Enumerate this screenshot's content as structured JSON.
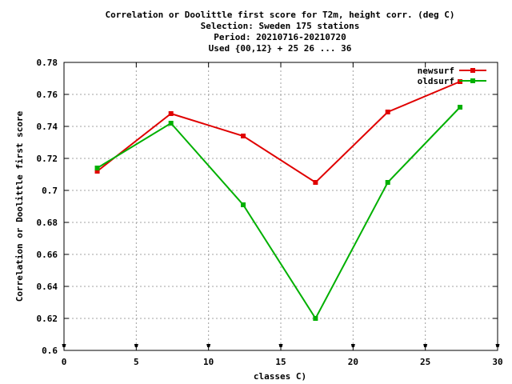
{
  "chart_data": {
    "type": "line",
    "title_lines": [
      "Correlation or Doolittle first score  for T2m, height corr. (deg C)",
      "Selection: Sweden    175 stations",
      "Period: 20210716-20210720",
      "Used {00,12} + 25 26 ... 36"
    ],
    "xlabel": "classes C)",
    "ylabel": "Correlation or Doolittle first score",
    "xlim": [
      0,
      30
    ],
    "ylim": [
      0.6,
      0.78
    ],
    "xticks": [
      "0",
      "5",
      "10",
      "15",
      "20",
      "25",
      "30"
    ],
    "yticks": [
      "0.6",
      "0.62",
      "0.64",
      "0.66",
      "0.68",
      "0.7",
      "0.72",
      "0.74",
      "0.76",
      "0.78"
    ],
    "grid": true,
    "legend_position": "top-right",
    "series": [
      {
        "name": "newsurf",
        "color": "#e00000",
        "x": [
          2.3,
          7.4,
          12.4,
          17.4,
          22.4,
          27.4
        ],
        "y": [
          0.712,
          0.748,
          0.734,
          0.705,
          0.749,
          0.768
        ]
      },
      {
        "name": "oldsurf",
        "color": "#00b000",
        "x": [
          2.3,
          7.4,
          12.4,
          17.4,
          22.4,
          27.4
        ],
        "y": [
          0.714,
          0.742,
          0.691,
          0.62,
          0.705,
          0.752
        ]
      }
    ]
  }
}
